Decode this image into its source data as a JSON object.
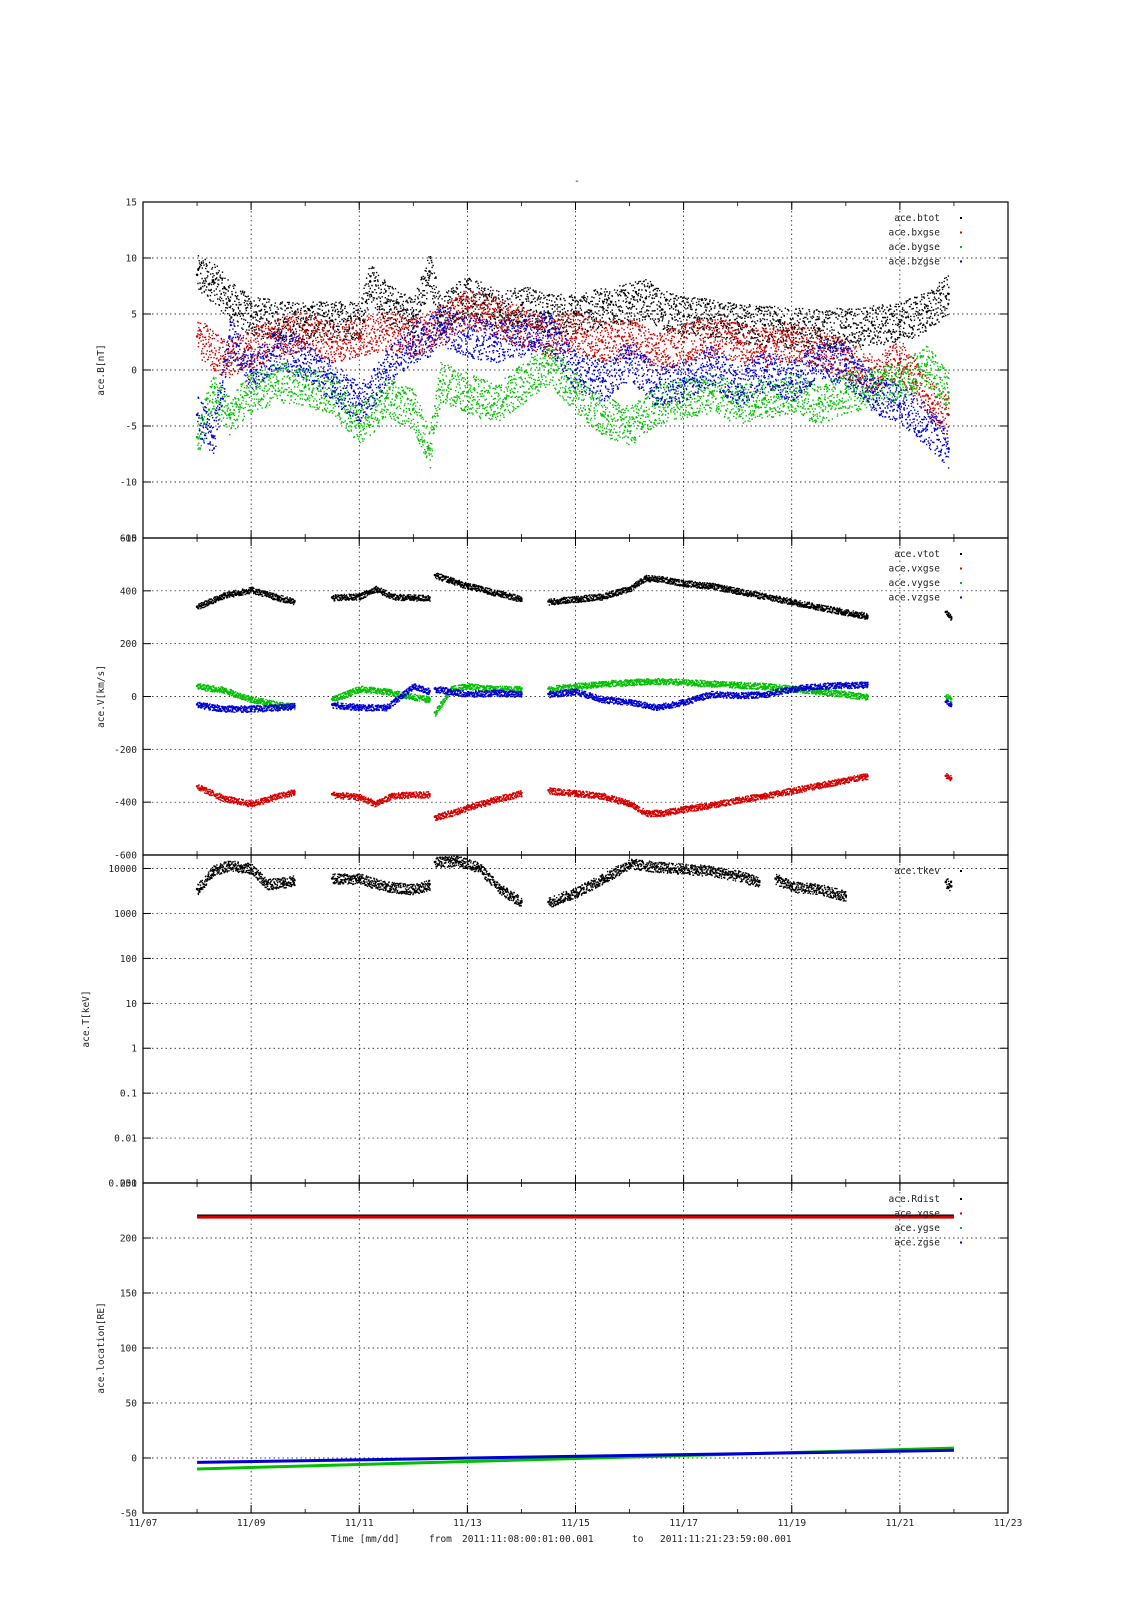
{
  "figure": {
    "title": "-",
    "xlabel": "Time [mm/dd]",
    "footer_from_label": "from",
    "footer_from": "2011:11:08:00:01:00.001",
    "footer_to_label": "to",
    "footer_to": "2011:11:21:23:59:00.001"
  },
  "colors": {
    "black": "#000000",
    "red": "#d40000",
    "green": "#00c000",
    "blue": "#0000d0",
    "grid": "#000000"
  },
  "chart_data": [
    {
      "type": "scatter",
      "id": "B",
      "ylabel": "ace.B[nT]",
      "ylim": [
        -15,
        15
      ],
      "yticks": [
        15,
        10,
        5,
        0,
        -5,
        -10,
        -15
      ],
      "xlim": [
        7,
        23
      ],
      "xticks": [
        "11/07",
        "11/09",
        "11/11",
        "11/13",
        "11/15",
        "11/17",
        "11/19",
        "11/21",
        "11/23"
      ],
      "xtick_days": [
        7,
        9,
        11,
        13,
        15,
        17,
        19,
        21,
        23
      ],
      "grid": true,
      "legend_position": "top-right",
      "series": [
        {
          "name": "ace.btot",
          "color": "black",
          "x": [
            8.0,
            8.3,
            8.6,
            9.0,
            9.5,
            10.0,
            10.5,
            11.0,
            11.2,
            11.5,
            12.0,
            12.3,
            12.5,
            12.8,
            13.0,
            13.3,
            13.6,
            14.0,
            14.5,
            15.0,
            15.5,
            16.0,
            16.3,
            16.6,
            17.0,
            17.5,
            18.0,
            18.5,
            19.0,
            19.5,
            20.0,
            20.5,
            21.0,
            21.5,
            21.9
          ],
          "y": [
            8.5,
            7.9,
            6.2,
            4.8,
            4.5,
            4.3,
            4.4,
            4.6,
            7.9,
            6.0,
            4.8,
            8.8,
            4.8,
            6.3,
            6.5,
            6.0,
            5.2,
            5.8,
            5.1,
            5.0,
            5.6,
            6.0,
            6.4,
            5.4,
            4.8,
            4.6,
            4.2,
            4.0,
            3.8,
            3.7,
            3.8,
            4.0,
            4.3,
            5.2,
            6.8
          ]
        },
        {
          "name": "ace.bxgse",
          "color": "red",
          "x": [
            8.0,
            8.5,
            9.0,
            9.5,
            10.0,
            10.5,
            11.0,
            11.5,
            12.0,
            12.3,
            12.5,
            13.0,
            13.5,
            14.5,
            15.0,
            15.5,
            16.0,
            16.5,
            17.0,
            17.5,
            18.0,
            18.5,
            19.0,
            19.5,
            20.0,
            20.5,
            21.0,
            21.3,
            21.6,
            21.9
          ],
          "y": [
            3.0,
            1.0,
            2.0,
            3.0,
            3.5,
            2.5,
            3.0,
            3.5,
            3.0,
            3.5,
            4.0,
            5.5,
            4.8,
            3.0,
            3.5,
            2.5,
            3.0,
            1.5,
            2.5,
            3.0,
            2.5,
            2.0,
            2.5,
            2.0,
            1.0,
            -0.5,
            1.0,
            -1.0,
            -3.0,
            -4.0
          ]
        },
        {
          "name": "ace.bygse",
          "color": "green",
          "x": [
            8.0,
            8.3,
            8.6,
            9.0,
            9.5,
            10.0,
            10.5,
            11.0,
            11.5,
            12.0,
            12.3,
            12.5,
            13.0,
            13.5,
            14.5,
            15.0,
            15.5,
            16.0,
            16.5,
            17.0,
            17.5,
            18.0,
            18.5,
            19.0,
            19.5,
            20.0,
            20.5,
            21.0,
            21.5,
            21.9
          ],
          "y": [
            -6.0,
            -2.0,
            -4.0,
            -2.0,
            -1.0,
            -1.5,
            -2.0,
            -5.0,
            -2.5,
            -3.5,
            -7.0,
            -1.0,
            -2.0,
            -3.0,
            0.5,
            -2.0,
            -4.0,
            -5.0,
            -3.0,
            -2.5,
            -2.0,
            -3.0,
            -2.5,
            -2.0,
            -3.0,
            -2.0,
            -1.5,
            -1.0,
            0.5,
            -2.0
          ]
        },
        {
          "name": "ace.bzgse",
          "color": "blue",
          "x": [
            8.0,
            8.3,
            8.6,
            9.0,
            9.5,
            10.0,
            10.5,
            11.0,
            11.5,
            12.0,
            12.3,
            12.5,
            13.0,
            13.5,
            14.5,
            15.0,
            15.5,
            16.0,
            16.5,
            17.0,
            17.5,
            18.0,
            18.5,
            19.0,
            19.5,
            20.0,
            20.5,
            21.0,
            21.5,
            21.9
          ],
          "y": [
            -4.0,
            -6.0,
            3.0,
            0.0,
            2.0,
            1.0,
            -1.0,
            -3.0,
            0.0,
            2.5,
            3.0,
            4.0,
            3.0,
            2.5,
            3.5,
            0.0,
            -1.0,
            1.0,
            -1.5,
            -1.0,
            0.5,
            -1.5,
            0.0,
            -1.0,
            1.0,
            0.5,
            -2.0,
            -3.0,
            -5.0,
            -7.0
          ]
        }
      ]
    },
    {
      "type": "scatter",
      "id": "V",
      "ylabel": "ace.V[km/s]",
      "ylim": [
        -600,
        600
      ],
      "yticks": [
        600,
        400,
        200,
        0,
        -200,
        -400,
        -600
      ],
      "grid": true,
      "legend_position": "top-right",
      "series": [
        {
          "name": "ace.vtot",
          "color": "black",
          "segments": [
            {
              "x": [
                8.0,
                8.5,
                9.0,
                9.5,
                9.8
              ],
              "y": [
                340,
                385,
                405,
                375,
                360
              ]
            },
            {
              "x": [
                10.5,
                11.0,
                11.3,
                11.6,
                12.0,
                12.3
              ],
              "y": [
                375,
                380,
                410,
                380,
                375,
                375
              ]
            },
            {
              "x": [
                12.4,
                12.7,
                13.0,
                13.5,
                14.0
              ],
              "y": [
                460,
                440,
                420,
                395,
                370
              ]
            },
            {
              "x": [
                14.5,
                15.0,
                15.5,
                16.0,
                16.3,
                16.6,
                17.0,
                17.5,
                18.0,
                18.5,
                19.0,
                19.5,
                20.0,
                20.4
              ],
              "y": [
                360,
                370,
                380,
                410,
                450,
                445,
                430,
                420,
                400,
                380,
                360,
                340,
                320,
                305
              ]
            },
            {
              "x": [
                21.85,
                21.95
              ],
              "y": [
                320,
                300
              ]
            }
          ]
        },
        {
          "name": "ace.vxgse",
          "color": "red",
          "segments": [
            {
              "x": [
                8.0,
                8.5,
                9.0,
                9.5,
                9.8
              ],
              "y": [
                -340,
                -385,
                -405,
                -375,
                -360
              ]
            },
            {
              "x": [
                10.5,
                11.0,
                11.3,
                11.6,
                12.0,
                12.3
              ],
              "y": [
                -370,
                -380,
                -405,
                -375,
                -370,
                -370
              ]
            },
            {
              "x": [
                12.4,
                12.7,
                13.0,
                13.5,
                14.0
              ],
              "y": [
                -455,
                -440,
                -420,
                -390,
                -365
              ]
            },
            {
              "x": [
                14.5,
                15.0,
                15.5,
                16.0,
                16.3,
                16.6,
                17.0,
                17.5,
                18.0,
                18.5,
                19.0,
                19.5,
                20.0,
                20.4
              ],
              "y": [
                -355,
                -365,
                -375,
                -405,
                -440,
                -440,
                -425,
                -410,
                -390,
                -375,
                -355,
                -335,
                -315,
                -300
              ]
            },
            {
              "x": [
                21.85,
                21.95
              ],
              "y": [
                -300,
                -310
              ]
            }
          ]
        },
        {
          "name": "ace.vygse",
          "color": "green",
          "segments": [
            {
              "x": [
                8.0,
                8.5,
                9.0,
                9.5,
                9.8
              ],
              "y": [
                40,
                25,
                -10,
                -30,
                -35
              ]
            },
            {
              "x": [
                10.5,
                11.0,
                11.5,
                12.0,
                12.3
              ],
              "y": [
                -10,
                30,
                20,
                0,
                -10
              ]
            },
            {
              "x": [
                12.4,
                12.7,
                13.0,
                13.5,
                14.0
              ],
              "y": [
                -60,
                30,
                40,
                30,
                30
              ]
            },
            {
              "x": [
                14.5,
                15.0,
                15.5,
                16.0,
                16.5,
                17.0,
                17.5,
                18.0,
                18.5,
                19.0,
                19.5,
                20.0,
                20.4
              ],
              "y": [
                30,
                40,
                50,
                55,
                60,
                55,
                50,
                45,
                40,
                30,
                20,
                10,
                0
              ]
            },
            {
              "x": [
                21.85,
                21.95
              ],
              "y": [
                0,
                -10
              ]
            }
          ]
        },
        {
          "name": "ace.vzgse",
          "color": "blue",
          "segments": [
            {
              "x": [
                8.0,
                8.5,
                9.0,
                9.5,
                9.8
              ],
              "y": [
                -30,
                -45,
                -45,
                -40,
                -35
              ]
            },
            {
              "x": [
                10.5,
                11.0,
                11.5,
                12.0,
                12.3
              ],
              "y": [
                -30,
                -40,
                -40,
                40,
                20
              ]
            },
            {
              "x": [
                12.4,
                12.7,
                13.0,
                13.5,
                14.0
              ],
              "y": [
                30,
                20,
                10,
                15,
                10
              ]
            },
            {
              "x": [
                14.5,
                15.0,
                15.5,
                16.0,
                16.5,
                17.0,
                17.5,
                18.0,
                18.5,
                19.0,
                19.5,
                20.0,
                20.4
              ],
              "y": [
                10,
                20,
                -10,
                -20,
                -40,
                -20,
                10,
                5,
                10,
                30,
                40,
                45,
                45
              ]
            },
            {
              "x": [
                21.85,
                21.95
              ],
              "y": [
                -20,
                -30
              ]
            }
          ]
        }
      ]
    },
    {
      "type": "scatter",
      "id": "T",
      "ylabel": "ace.T[keV]",
      "yscale": "log",
      "ylim": [
        0.001,
        20000
      ],
      "ytick_values": [
        10000,
        1000,
        100,
        10,
        1,
        0.1,
        0.01,
        0.001
      ],
      "ytick_labels": [
        "10000",
        "1000",
        "100",
        "10",
        "1",
        "0.1",
        "0.01",
        "0.001"
      ],
      "grid": true,
      "legend_position": "top-right",
      "series": [
        {
          "name": "ace.tkev",
          "color": "black",
          "segments": [
            {
              "x": [
                8.0,
                8.3,
                8.6,
                9.0,
                9.3,
                9.6,
                9.8
              ],
              "y": [
                3500,
                9000,
                12000,
                10000,
                4500,
                5000,
                5500
              ]
            },
            {
              "x": [
                10.5,
                11.0,
                11.5,
                12.0,
                12.3
              ],
              "y": [
                6000,
                6000,
                4000,
                3500,
                4500
              ]
            },
            {
              "x": [
                12.4,
                12.8,
                13.2,
                13.6,
                14.0
              ],
              "y": [
                14000,
                15000,
                11000,
                3500,
                1800
              ]
            },
            {
              "x": [
                14.5,
                15.0,
                15.5,
                16.0,
                16.5,
                17.0,
                17.5,
                18.0,
                18.4
              ],
              "y": [
                1800,
                3000,
                6000,
                13000,
                11000,
                10000,
                9000,
                7000,
                5000
              ]
            },
            {
              "x": [
                18.7,
                19.0,
                19.5,
                20.0
              ],
              "y": [
                6000,
                4000,
                3500,
                2500
              ]
            },
            {
              "x": [
                21.85,
                21.95
              ],
              "y": [
                5000,
                4000
              ]
            }
          ]
        }
      ]
    },
    {
      "type": "line",
      "id": "loc",
      "ylabel": "ace.location[RE]",
      "ylim": [
        -50,
        250
      ],
      "yticks": [
        250,
        200,
        150,
        100,
        50,
        0,
        -50
      ],
      "grid": true,
      "legend_position": "top-right",
      "series": [
        {
          "name": "ace.Rdist",
          "color": "black",
          "x": [
            8.0,
            22.0
          ],
          "y": [
            220,
            220
          ]
        },
        {
          "name": "ace.xgse",
          "color": "red",
          "x": [
            8.0,
            22.0
          ],
          "y": [
            219,
            219
          ]
        },
        {
          "name": "ace.ygse",
          "color": "green",
          "x": [
            8.0,
            22.0
          ],
          "y": [
            -10,
            9
          ]
        },
        {
          "name": "ace.zgse",
          "color": "blue",
          "x": [
            8.0,
            22.0
          ],
          "y": [
            -4,
            7
          ]
        }
      ]
    }
  ]
}
